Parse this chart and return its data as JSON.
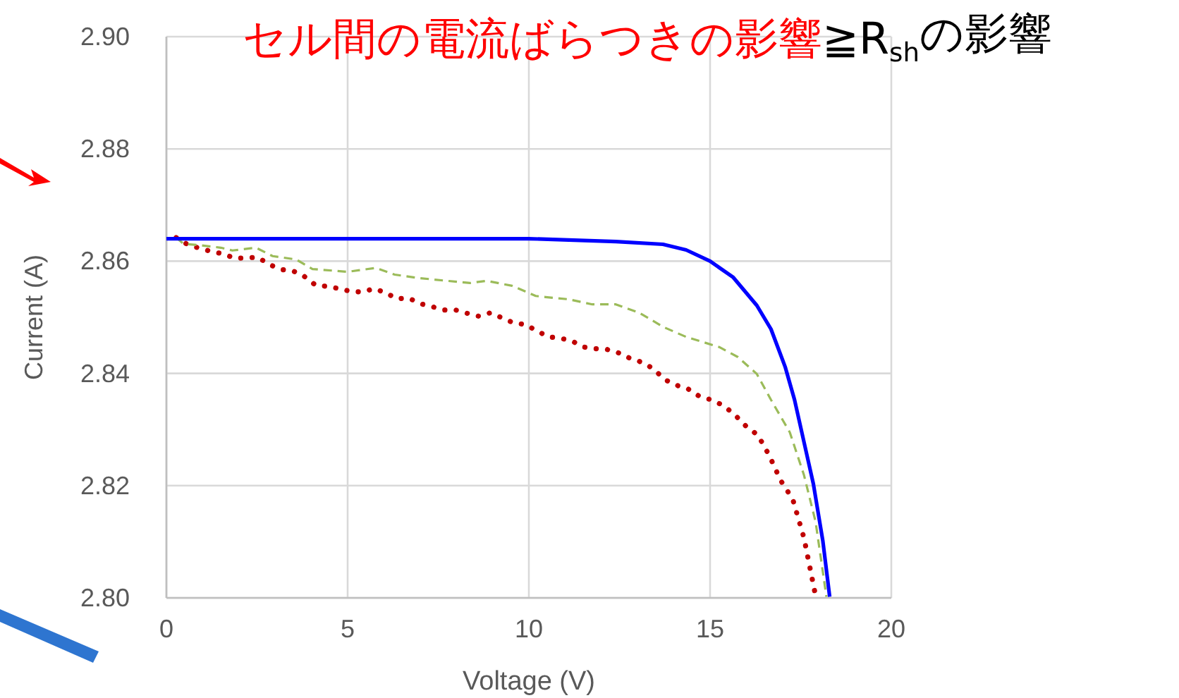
{
  "chart_data": {
    "type": "line",
    "title": "セル間の電流ばらつきの影響",
    "subtitle": "≧R$_{sh}$の影響",
    "xlabel": "Voltage (V)",
    "ylabel": "Current (A)",
    "xlim": [
      0,
      20
    ],
    "xticks": [
      0,
      5,
      10,
      15,
      20
    ],
    "ylim": [
      2.8,
      2.9
    ],
    "yticks": [
      {
        "value": 2.8,
        "label": "2.80"
      },
      {
        "value": 2.82,
        "label": "2.82"
      },
      {
        "value": 2.84,
        "label": "2.84"
      },
      {
        "value": 2.86,
        "label": "2.86"
      },
      {
        "value": 2.88,
        "label": "2.88"
      },
      {
        "value": 2.9,
        "label": "2.90"
      }
    ],
    "grid": true,
    "series": [
      {
        "color": "#0000ff",
        "line_style": "solid",
        "x": [
          0,
          5,
          10,
          12.4,
          13.7,
          14.34,
          15.0,
          15.64,
          16.29,
          16.68,
          17.07,
          17.33,
          17.59,
          17.85,
          18.11,
          18.3
        ],
        "values": [
          2.864,
          2.864,
          2.864,
          2.8635,
          2.863,
          2.862,
          2.86,
          2.8571,
          2.8521,
          2.8479,
          2.8412,
          2.8353,
          2.8278,
          2.8203,
          2.8102,
          2.8002
        ]
      },
      {
        "color": "#9bbb59",
        "line_style": "dashed",
        "x": [
          0.27,
          0.47,
          0.98,
          1.5,
          1.82,
          2.47,
          2.93,
          3.58,
          4.03,
          5.0,
          5.78,
          6.3,
          6.95,
          7.73,
          8.38,
          8.83,
          9.54,
          10.19,
          10.46,
          11.1,
          11.75,
          12.4,
          13.05,
          13.7,
          14.34,
          15.25,
          15.77,
          16.29,
          16.68,
          17.2,
          17.59,
          17.91,
          18.21
        ],
        "values": [
          2.8642,
          2.8631,
          2.8628,
          2.8624,
          2.8619,
          2.8624,
          2.8609,
          2.8603,
          2.8586,
          2.8581,
          2.8588,
          2.8576,
          2.857,
          2.8565,
          2.8561,
          2.8565,
          2.8556,
          2.8538,
          2.8536,
          2.8532,
          2.8523,
          2.8523,
          2.8508,
          2.8483,
          2.8465,
          2.8447,
          2.8429,
          2.8399,
          2.8353,
          2.8295,
          2.8219,
          2.8136,
          2.8002
        ]
      },
      {
        "color": "#c00000",
        "line_style": "dotted",
        "x": [
          0.27,
          0.6,
          0.92,
          1.25,
          1.57,
          1.89,
          2.22,
          2.52,
          2.84,
          3.17,
          3.48,
          3.8,
          4.12,
          4.45,
          4.77,
          5.09,
          5.4,
          5.73,
          6.04,
          6.36,
          6.69,
          7.02,
          7.33,
          7.65,
          7.98,
          8.3,
          8.61,
          8.94,
          9.26,
          9.58,
          9.9,
          10.22,
          10.54,
          10.85,
          11.18,
          11.51,
          11.83,
          12.14,
          12.46,
          12.79,
          13.11,
          13.42,
          13.75,
          14.07,
          14.4,
          14.71,
          15.03,
          15.36,
          15.67,
          15.99,
          16.32,
          16.63,
          16.95,
          17.28,
          17.59,
          17.91
        ],
        "values": [
          2.8642,
          2.8629,
          2.8623,
          2.8617,
          2.8613,
          2.8605,
          2.8606,
          2.8607,
          2.8594,
          2.8585,
          2.8583,
          2.8573,
          2.8557,
          2.8555,
          2.8551,
          2.8546,
          2.8545,
          2.8551,
          2.8544,
          2.8533,
          2.8534,
          2.8524,
          2.8519,
          2.8513,
          2.8513,
          2.8507,
          2.8502,
          2.8508,
          2.8499,
          2.849,
          2.8487,
          2.8476,
          2.8465,
          2.8463,
          2.8458,
          2.8447,
          2.8444,
          2.8443,
          2.8437,
          2.8427,
          2.842,
          2.8409,
          2.8389,
          2.8379,
          2.8372,
          2.8359,
          2.8353,
          2.8343,
          2.8327,
          2.8306,
          2.829,
          2.8254,
          2.8209,
          2.8176,
          2.8107,
          2.8004
        ]
      }
    ]
  }
}
